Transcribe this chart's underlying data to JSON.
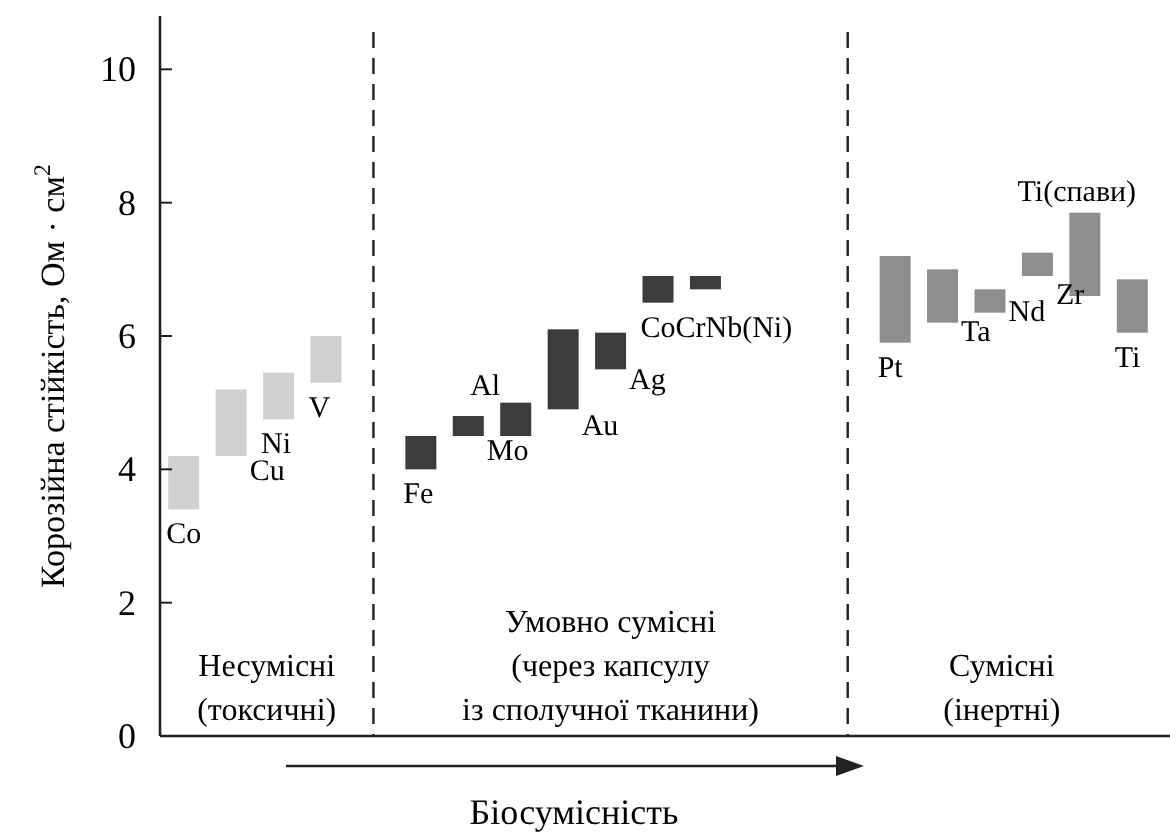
{
  "chart_data": {
    "type": "bar",
    "ylabel": "Корозійна стійкість, Ом · см$^{2}$",
    "xlabel": "Біосумісність",
    "categories": [
      null,
      null,
      null,
      null,
      null,
      null,
      null,
      null,
      null,
      null,
      null,
      null,
      null,
      null,
      null,
      null,
      null,
      null,
      null,
      null,
      null
    ],
    "base": [
      3.4,
      4.2,
      4.75,
      5.3,
      null,
      4.0,
      4.5,
      4.5,
      4.9,
      5.5,
      6.5,
      6.7,
      null,
      null,
      null,
      5.9,
      6.2,
      6.35,
      6.9,
      6.6,
      6.05
    ],
    "values": [
      0.8,
      1.0,
      0.7,
      0.7,
      null,
      0.5,
      0.3,
      0.5,
      1.2,
      0.55,
      0.4,
      0.2,
      null,
      null,
      null,
      1.3,
      0.8,
      0.35,
      0.35,
      1.25,
      0.8
    ],
    "colors": [
      "#d0d0d0",
      "#d0d0d0",
      "#d0d0d0",
      "#d0d0d0",
      null,
      "#3c3c3c",
      "#3c3c3c",
      "#3c3c3c",
      "#3c3c3c",
      "#3c3c3c",
      "#3c3c3c",
      "#3c3c3c",
      null,
      null,
      null,
      "#8e8e8e",
      "#8e8e8e",
      "#8e8e8e",
      "#8e8e8e",
      "#8e8e8e",
      "#8e8e8e"
    ],
    "ylim": [
      0,
      10.8
    ],
    "yticks": [
      0,
      2,
      4,
      6,
      8,
      10
    ],
    "tick_labels": "y",
    "annotations": [
      "Несумісні\n(токсичні)",
      "Умовно сумісні\n(через капсулу\nіз сполучної тканини)",
      "Сумісні\n(інертні)",
      "Co",
      "Cu",
      "Ni",
      "V",
      "Fe",
      "Mo",
      "Al",
      "Au",
      "Ag",
      "CoCrNb(Ni)",
      "Pt",
      "Ta",
      "Nd",
      "Zr",
      "Ti(спави)",
      "Ti"
    ]
  }
}
